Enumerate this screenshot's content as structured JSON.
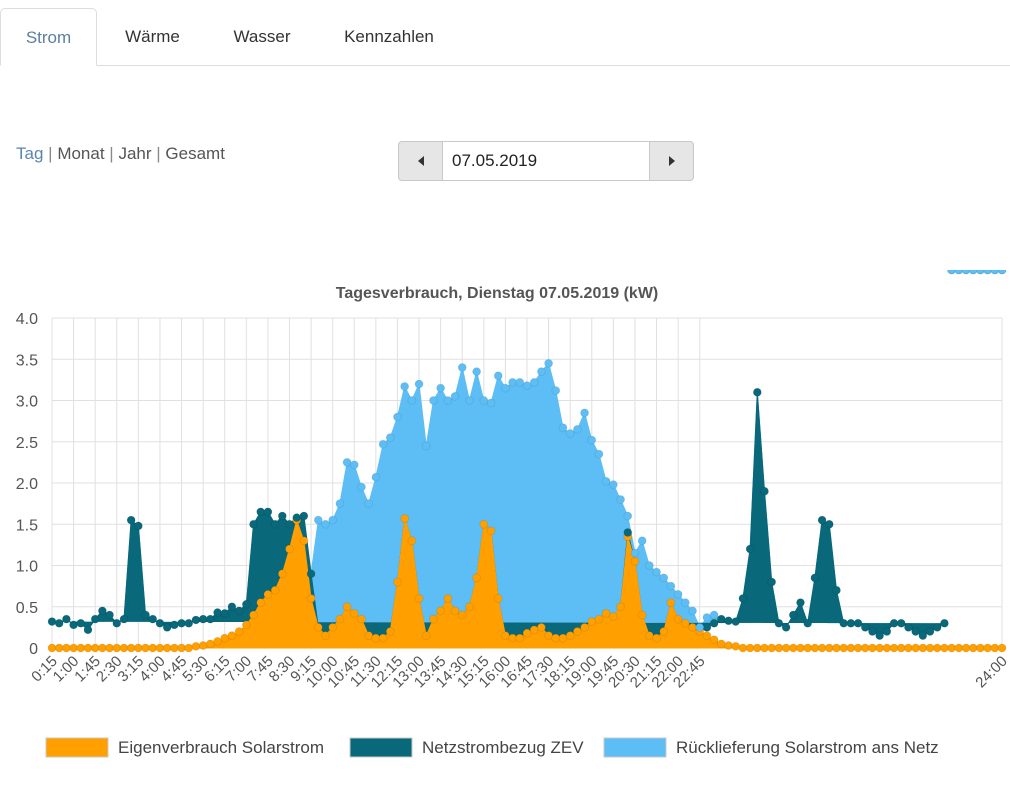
{
  "tabs": [
    {
      "label": "Strom",
      "active": true
    },
    {
      "label": "Wärme",
      "active": false
    },
    {
      "label": "Wasser",
      "active": false
    },
    {
      "label": "Kennzahlen",
      "active": false
    }
  ],
  "period": {
    "selected": "Tag",
    "options": [
      "Monat",
      "Jahr",
      "Gesamt"
    ],
    "separator": "|"
  },
  "date_picker": {
    "value": "07.05.2019",
    "prev_icon": "caret-left-icon",
    "next_icon": "caret-right-icon"
  },
  "colors": {
    "eigenverbrauch": "#ff9f00",
    "netzstrombezug": "#09687a",
    "ruecklieferung": "#5dbef5",
    "grid": "#e0e0e0",
    "active_tab": "#5a7fa0"
  },
  "chart_data": {
    "type": "area",
    "stacked": true,
    "title": "Tagesverbrauch, Dienstag 07.05.2019 (kW)",
    "xlabel": "",
    "ylabel": "",
    "ylim": [
      0,
      4
    ],
    "yticks": [
      "0",
      "0.5",
      "1.0",
      "1.5",
      "2.0",
      "2.5",
      "3.0",
      "3.5",
      "4.0"
    ],
    "x_tick_labels": [
      "0:15",
      "1:00",
      "1:45",
      "2:30",
      "3:15",
      "4:00",
      "4:45",
      "5:30",
      "6:15",
      "7:00",
      "7:45",
      "8:30",
      "9:15",
      "10:00",
      "10:45",
      "11:30",
      "12:15",
      "13:00",
      "13:45",
      "14:30",
      "15:15",
      "16:00",
      "16:45",
      "17:30",
      "18:15",
      "19:00",
      "19:45",
      "20:30",
      "21:15",
      "22:00",
      "22:45",
      "24:00"
    ],
    "x_interval": "15 min",
    "legend_position": "bottom",
    "grid": true,
    "series": [
      {
        "name": "Eigenverbrauch Solarstrom",
        "values": [
          0,
          0,
          0,
          0,
          0,
          0,
          0,
          0,
          0,
          0,
          0,
          0,
          0,
          0,
          0,
          0,
          0,
          0,
          0,
          0,
          0.02,
          0.03,
          0.05,
          0.08,
          0.12,
          0.15,
          0.2,
          0.28,
          0.4,
          0.55,
          0.65,
          0.7,
          0.9,
          1.2,
          1.55,
          1.3,
          0.6,
          0.25,
          0.15,
          0.25,
          0.35,
          0.5,
          0.42,
          0.35,
          0.15,
          0.12,
          0.12,
          0.2,
          0.8,
          1.57,
          1.3,
          0.6,
          0.15,
          0.35,
          0.45,
          0.6,
          0.45,
          0.4,
          0.5,
          0.85,
          1.5,
          1.42,
          0.6,
          0.15,
          0.12,
          0.12,
          0.18,
          0.22,
          0.25,
          0.15,
          0.12,
          0.12,
          0.15,
          0.2,
          0.25,
          0.32,
          0.35,
          0.42,
          0.38,
          0.5,
          1.35,
          1.05,
          0.4,
          0.15,
          0.12,
          0.2,
          0.55,
          0.35,
          0.3,
          0.25,
          0.2,
          0.15,
          0.1,
          0.05,
          0.03,
          0.02,
          0,
          0,
          0,
          0,
          0,
          0,
          0,
          0,
          0,
          0,
          0,
          0,
          0,
          0,
          0,
          0,
          0,
          0,
          0,
          0,
          0,
          0,
          0,
          0,
          0,
          0,
          0,
          0,
          0,
          0,
          0,
          0,
          0,
          0,
          0,
          0,
          0
        ]
      },
      {
        "name": "Netzstrombezug ZEV",
        "values": [
          0.32,
          0.3,
          0.35,
          0.28,
          0.3,
          0.22,
          0.35,
          0.45,
          0.4,
          0.3,
          0.35,
          1.55,
          1.48,
          0.4,
          0.35,
          0.3,
          0.25,
          0.28,
          0.3,
          0.3,
          0.32,
          0.32,
          0.3,
          0.35,
          0.3,
          0.35,
          0.25,
          0.25,
          1.1,
          1.1,
          1.0,
          0.8,
          0.7,
          0.3,
          0.03,
          0.3,
          0.3,
          0,
          0,
          0,
          0,
          0,
          0,
          0,
          0,
          0,
          0,
          0,
          0,
          0,
          0,
          0,
          0,
          0,
          0,
          0,
          0,
          0,
          0,
          0,
          0,
          0,
          0,
          0,
          0,
          0,
          0,
          0,
          0,
          0,
          0,
          0,
          0,
          0,
          0,
          0,
          0,
          0,
          0,
          0,
          0.05,
          0,
          0,
          0,
          0,
          0,
          0,
          0,
          0,
          0,
          0,
          0.1,
          0.2,
          0.3,
          0.3,
          0.3,
          0.6,
          1.2,
          3.1,
          1.9,
          0.8,
          0.3,
          0.25,
          0.4,
          0.55,
          0.3,
          0.85,
          1.55,
          1.5,
          0.7,
          0.3,
          0.3,
          0.3,
          0.25,
          0.2,
          0.15,
          0.2,
          0.3,
          0.3,
          0.25,
          0.2,
          0.15,
          0.2,
          0.25,
          0.3
        ]
      },
      {
        "name": "Rücklieferung Solarstrom ans Netz",
        "values": [
          0,
          0,
          0,
          0,
          0,
          0,
          0,
          0,
          0,
          0,
          0,
          0,
          0,
          0,
          0,
          0,
          0,
          0,
          0,
          0,
          0,
          0,
          0,
          0,
          0,
          0,
          0,
          0,
          0,
          0,
          0,
          0,
          0,
          0,
          0,
          0,
          0,
          1.3,
          1.35,
          1.3,
          1.4,
          1.75,
          1.8,
          1.6,
          1.6,
          1.95,
          2.35,
          2.35,
          2.0,
          1.6,
          1.7,
          2.6,
          2.3,
          2.65,
          2.7,
          2.4,
          2.6,
          3.0,
          2.5,
          2.5,
          1.5,
          1.55,
          2.7,
          3.0,
          3.1,
          3.1,
          3.0,
          3.0,
          3.1,
          3.3,
          3.0,
          2.55,
          2.45,
          2.45,
          2.6,
          2.2,
          2.0,
          1.6,
          1.6,
          1.3,
          0.2,
          0.1,
          0.9,
          0.85,
          0.8,
          0.65,
          0.2,
          0.3,
          0.25,
          0.2,
          0.05,
          0.12,
          0.1,
          0,
          0,
          0,
          0,
          0,
          0,
          0,
          0,
          0,
          0,
          0,
          0,
          0,
          0,
          0,
          0,
          0,
          0,
          0,
          0,
          0,
          0,
          0,
          0,
          0,
          0,
          0,
          0,
          0,
          0,
          0,
          0
        ]
      }
    ]
  }
}
